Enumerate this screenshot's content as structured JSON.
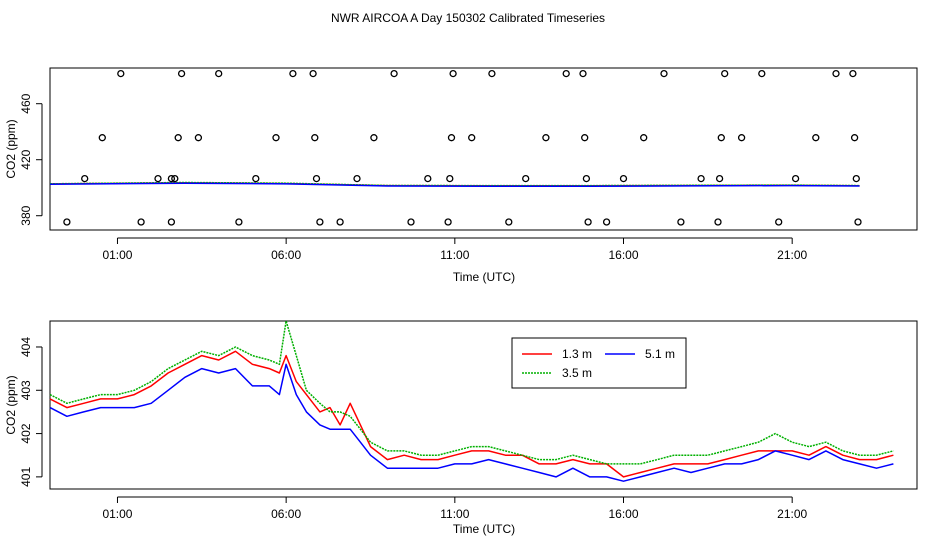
{
  "title": "NWR AIRCOA A  Day 150302  Calibrated Timeseries",
  "chart_data": [
    {
      "type": "scatter",
      "xlabel": "Time (UTC)",
      "ylabel": "CO2 (ppm)",
      "xlim": [
        -1.0,
        24.7
      ],
      "ylim": [
        369.8,
        485.5
      ],
      "xticks": [
        1,
        6,
        11,
        16,
        21
      ],
      "xtick_labels": [
        "01:00",
        "06:00",
        "11:00",
        "16:00",
        "21:00"
      ],
      "yticks": [
        380,
        420,
        460
      ],
      "ytick_labels": [
        "380",
        "420",
        "460"
      ],
      "circles": [
        [
          -0.5,
          375.5
        ],
        [
          0.03,
          406.5
        ],
        [
          0.55,
          435.7
        ],
        [
          1.1,
          481.5
        ],
        [
          1.7,
          375.5
        ],
        [
          2.2,
          406.5
        ],
        [
          2.6,
          406.5
        ],
        [
          2.6,
          375.5
        ],
        [
          2.7,
          406.5
        ],
        [
          2.8,
          435.7
        ],
        [
          2.9,
          481.5
        ],
        [
          3.4,
          435.7
        ],
        [
          4.0,
          481.5
        ],
        [
          4.6,
          375.5
        ],
        [
          5.1,
          406.5
        ],
        [
          5.7,
          435.7
        ],
        [
          6.2,
          481.5
        ],
        [
          6.8,
          481.5
        ],
        [
          6.85,
          435.7
        ],
        [
          6.9,
          406.5
        ],
        [
          7.0,
          375.5
        ],
        [
          7.6,
          375.5
        ],
        [
          8.1,
          406.5
        ],
        [
          8.6,
          435.7
        ],
        [
          9.2,
          481.5
        ],
        [
          9.7,
          375.5
        ],
        [
          10.2,
          406.5
        ],
        [
          10.8,
          375.5
        ],
        [
          10.85,
          406.5
        ],
        [
          10.9,
          435.7
        ],
        [
          10.95,
          481.5
        ],
        [
          11.5,
          435.7
        ],
        [
          12.1,
          481.5
        ],
        [
          12.6,
          375.5
        ],
        [
          13.1,
          406.5
        ],
        [
          13.7,
          435.7
        ],
        [
          14.3,
          481.5
        ],
        [
          14.8,
          481.5
        ],
        [
          14.85,
          435.7
        ],
        [
          14.9,
          406.5
        ],
        [
          14.95,
          375.5
        ],
        [
          15.5,
          375.5
        ],
        [
          16.0,
          406.5
        ],
        [
          16.6,
          435.7
        ],
        [
          17.2,
          481.5
        ],
        [
          17.7,
          375.5
        ],
        [
          18.3,
          406.5
        ],
        [
          18.8,
          375.5
        ],
        [
          18.85,
          406.5
        ],
        [
          18.9,
          435.7
        ],
        [
          19.0,
          481.5
        ],
        [
          19.5,
          435.7
        ],
        [
          20.1,
          481.5
        ],
        [
          20.6,
          375.5
        ],
        [
          21.1,
          406.5
        ],
        [
          21.7,
          435.7
        ],
        [
          22.3,
          481.5
        ],
        [
          22.8,
          481.5
        ],
        [
          22.85,
          435.7
        ],
        [
          22.9,
          406.5
        ],
        [
          22.95,
          375.5
        ]
      ],
      "lines": [
        {
          "name": "1.3 m",
          "color": "#ff0000",
          "x": [
            -1.0,
            3.0,
            6.0,
            9.0,
            12.0,
            15.0,
            18.0,
            21.0,
            23.0
          ],
          "y": [
            402.7,
            403.5,
            403.0,
            401.5,
            401.4,
            401.4,
            401.6,
            401.8,
            401.4
          ]
        },
        {
          "name": "3.5 m",
          "color": "#00cc00",
          "x": [
            -1.0,
            3.0,
            6.0,
            9.0,
            12.0,
            15.0,
            18.0,
            21.0,
            23.0
          ],
          "y": [
            402.8,
            403.7,
            403.2,
            401.6,
            401.5,
            401.5,
            401.7,
            401.9,
            401.5
          ]
        },
        {
          "name": "5.1 m",
          "color": "#0000ff",
          "x": [
            -1.0,
            3.0,
            6.0,
            9.0,
            12.0,
            15.0,
            18.0,
            21.0,
            23.0
          ],
          "y": [
            402.5,
            403.2,
            402.7,
            401.2,
            401.1,
            401.0,
            401.3,
            401.5,
            401.2
          ]
        }
      ]
    },
    {
      "type": "line",
      "xlabel": "Time (UTC)",
      "ylabel": "CO2 (ppm)",
      "xlim": [
        -1.0,
        24.7
      ],
      "ylim": [
        400.72,
        404.6
      ],
      "xticks": [
        1,
        6,
        11,
        16,
        21
      ],
      "xtick_labels": [
        "01:00",
        "06:00",
        "11:00",
        "16:00",
        "21:00"
      ],
      "yticks": [
        401,
        402,
        403,
        404
      ],
      "ytick_labels": [
        "401",
        "402",
        "403",
        "404"
      ],
      "legend": {
        "placement": "top-center",
        "entries": [
          "1.3 m",
          "3.5 m",
          "5.1 m"
        ]
      },
      "series": [
        {
          "name": "1.3 m",
          "color": "#ff0000",
          "x": [
            -1.0,
            -0.5,
            0.0,
            0.5,
            1.0,
            1.5,
            2.0,
            2.5,
            3.0,
            3.5,
            4.0,
            4.5,
            5.0,
            5.5,
            5.8,
            6.0,
            6.3,
            6.6,
            7.0,
            7.3,
            7.6,
            7.9,
            8.2,
            8.5,
            9.0,
            9.5,
            10.0,
            10.5,
            11.0,
            11.5,
            12.0,
            12.5,
            13.0,
            13.5,
            14.0,
            14.5,
            15.0,
            15.5,
            16.0,
            16.5,
            17.0,
            17.5,
            18.0,
            18.5,
            19.0,
            19.5,
            20.0,
            20.5,
            21.0,
            21.5,
            22.0,
            22.5,
            23.0,
            23.5,
            24.0
          ],
          "y": [
            402.8,
            402.6,
            402.7,
            402.8,
            402.8,
            402.9,
            403.1,
            403.4,
            403.6,
            403.8,
            403.7,
            403.9,
            403.6,
            403.5,
            403.4,
            403.8,
            403.2,
            402.9,
            402.5,
            402.6,
            402.2,
            402.7,
            402.2,
            401.7,
            401.4,
            401.5,
            401.4,
            401.4,
            401.5,
            401.6,
            401.6,
            401.5,
            401.5,
            401.3,
            401.3,
            401.4,
            401.3,
            401.3,
            401.0,
            401.1,
            401.2,
            401.3,
            401.3,
            401.3,
            401.4,
            401.5,
            401.6,
            401.6,
            401.6,
            401.5,
            401.7,
            401.5,
            401.4,
            401.4,
            401.5
          ]
        },
        {
          "name": "3.5 m",
          "color": "#00b000",
          "x": [
            -1.0,
            -0.5,
            0.0,
            0.5,
            1.0,
            1.5,
            2.0,
            2.5,
            3.0,
            3.5,
            4.0,
            4.5,
            5.0,
            5.5,
            5.8,
            6.0,
            6.3,
            6.6,
            7.0,
            7.3,
            7.6,
            7.9,
            8.2,
            8.5,
            9.0,
            9.5,
            10.0,
            10.5,
            11.0,
            11.5,
            12.0,
            12.5,
            13.0,
            13.5,
            14.0,
            14.5,
            15.0,
            15.5,
            16.0,
            16.5,
            17.0,
            17.5,
            18.0,
            18.5,
            19.0,
            19.5,
            20.0,
            20.5,
            21.0,
            21.5,
            22.0,
            22.5,
            23.0,
            23.5,
            24.0
          ],
          "y": [
            402.9,
            402.7,
            402.8,
            402.9,
            402.9,
            403.0,
            403.2,
            403.5,
            403.7,
            403.9,
            403.8,
            404.0,
            403.8,
            403.7,
            403.6,
            404.6,
            403.8,
            403.0,
            402.7,
            402.5,
            402.5,
            402.4,
            402.1,
            401.8,
            401.6,
            401.6,
            401.5,
            401.5,
            401.6,
            401.7,
            401.7,
            401.6,
            401.5,
            401.4,
            401.4,
            401.5,
            401.4,
            401.3,
            401.3,
            401.3,
            401.4,
            401.5,
            401.5,
            401.5,
            401.6,
            401.7,
            401.8,
            402.0,
            401.8,
            401.7,
            401.8,
            401.6,
            401.5,
            401.5,
            401.6
          ]
        },
        {
          "name": "5.1 m",
          "color": "#0000ff",
          "x": [
            -1.0,
            -0.5,
            0.0,
            0.5,
            1.0,
            1.5,
            2.0,
            2.5,
            3.0,
            3.5,
            4.0,
            4.5,
            5.0,
            5.5,
            5.8,
            6.0,
            6.3,
            6.6,
            7.0,
            7.3,
            7.6,
            7.9,
            8.2,
            8.5,
            9.0,
            9.5,
            10.0,
            10.5,
            11.0,
            11.5,
            12.0,
            12.5,
            13.0,
            13.5,
            14.0,
            14.5,
            15.0,
            15.5,
            16.0,
            16.5,
            17.0,
            17.5,
            18.0,
            18.5,
            19.0,
            19.5,
            20.0,
            20.5,
            21.0,
            21.5,
            22.0,
            22.5,
            23.0,
            23.5,
            24.0
          ],
          "y": [
            402.6,
            402.4,
            402.5,
            402.6,
            402.6,
            402.6,
            402.7,
            403.0,
            403.3,
            403.5,
            403.4,
            403.5,
            403.1,
            403.1,
            402.9,
            403.6,
            402.9,
            402.5,
            402.2,
            402.1,
            402.1,
            402.1,
            401.8,
            401.5,
            401.2,
            401.2,
            401.2,
            401.2,
            401.3,
            401.3,
            401.4,
            401.3,
            401.2,
            401.1,
            401.0,
            401.2,
            401.0,
            401.0,
            400.9,
            401.0,
            401.1,
            401.2,
            401.1,
            401.2,
            401.3,
            401.3,
            401.4,
            401.6,
            401.5,
            401.4,
            401.6,
            401.4,
            401.3,
            401.2,
            401.3
          ]
        }
      ]
    }
  ]
}
